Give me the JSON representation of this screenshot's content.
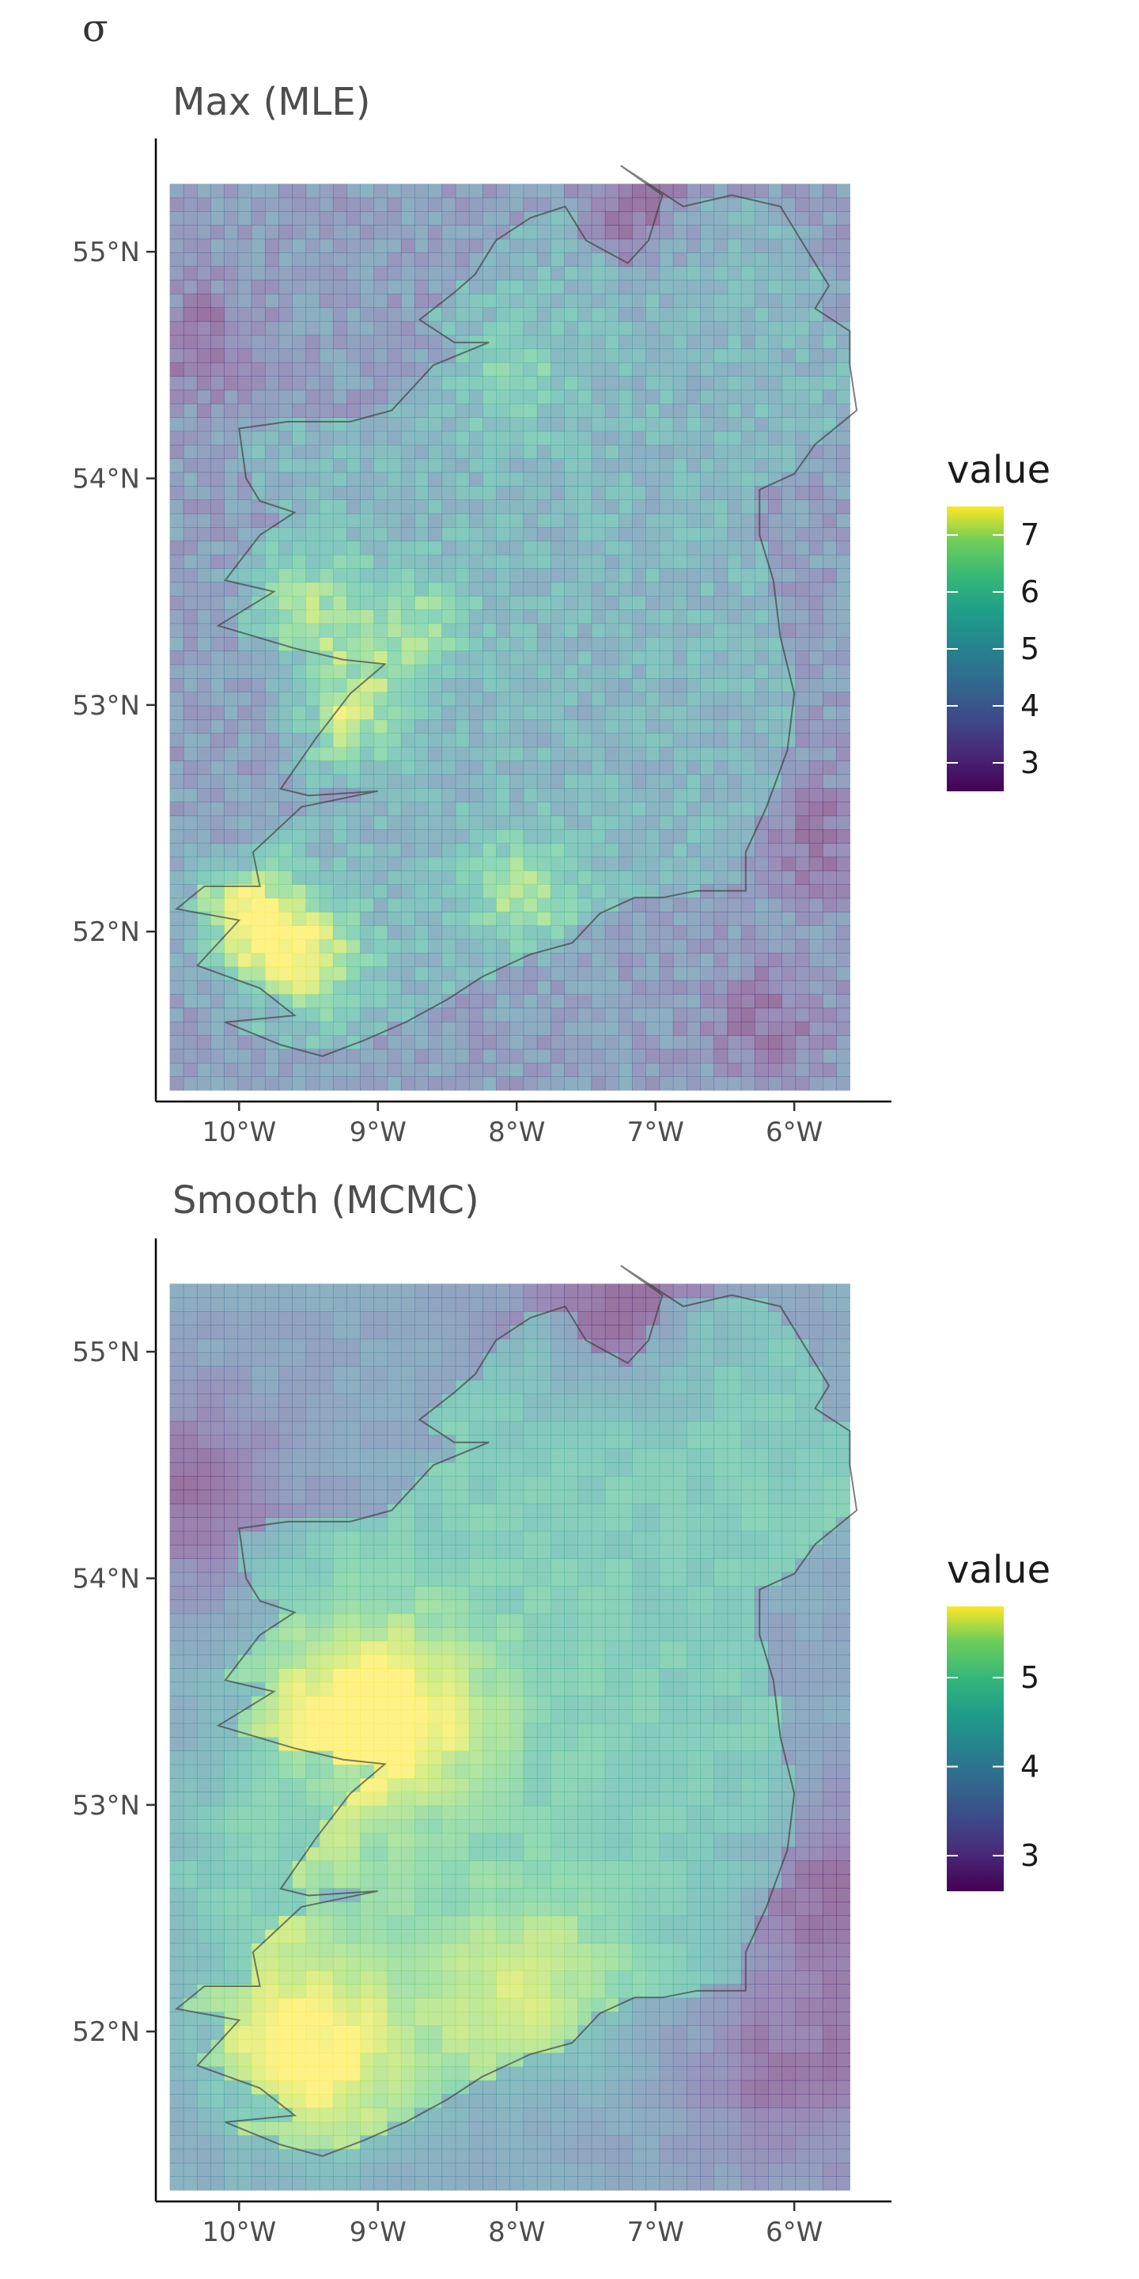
{
  "figure_label": "σ",
  "chart_data": [
    {
      "type": "heatmap",
      "title": "Max (MLE)",
      "xlabel": "",
      "ylabel": "",
      "xlim": [
        -10.6,
        -5.3
      ],
      "ylim": [
        51.25,
        55.5
      ],
      "x_ticks": [
        -10,
        -9,
        -8,
        -7,
        -6
      ],
      "x_tick_labels": [
        "10°W",
        "9°W",
        "8°W",
        "7°W",
        "6°W"
      ],
      "y_ticks": [
        52,
        53,
        54,
        55
      ],
      "y_tick_labels": [
        "52°N",
        "53°N",
        "54°N",
        "55°N"
      ],
      "grid_extent": {
        "lon": [
          -10.5,
          -5.6
        ],
        "lat": [
          51.3,
          55.3
        ]
      },
      "colormap": "viridis",
      "legend": {
        "title": "value",
        "min": 2.5,
        "max": 7.5,
        "ticks": [
          3,
          4,
          5,
          6,
          7
        ],
        "tick_labels": [
          "3",
          "4",
          "5",
          "6",
          "7"
        ],
        "position": "right"
      },
      "value_range": [
        2.5,
        7.5
      ],
      "hotspots": [
        {
          "lon": -9.95,
          "lat": 52.07,
          "value": 7.3
        },
        {
          "lon": -9.5,
          "lat": 51.88,
          "value": 6.8
        },
        {
          "lon": -9.25,
          "lat": 53.0,
          "value": 6.8
        },
        {
          "lon": -7.95,
          "lat": 52.18,
          "value": 6.3
        },
        {
          "lon": -9.5,
          "lat": 53.45,
          "value": 6.0
        },
        {
          "lon": -8.75,
          "lat": 53.35,
          "value": 5.9
        },
        {
          "lon": -8.0,
          "lat": 54.45,
          "value": 5.4
        }
      ],
      "coldspots": [
        {
          "lon": -7.1,
          "lat": 55.2,
          "value": 2.9
        },
        {
          "lon": -10.3,
          "lat": 54.6,
          "value": 3.0
        },
        {
          "lon": -5.8,
          "lat": 52.4,
          "value": 3.0
        },
        {
          "lon": -6.2,
          "lat": 51.6,
          "value": 3.0
        }
      ]
    },
    {
      "type": "heatmap",
      "title": "Smooth (MCMC)",
      "xlabel": "",
      "ylabel": "",
      "xlim": [
        -10.6,
        -5.3
      ],
      "ylim": [
        51.25,
        55.5
      ],
      "x_ticks": [
        -10,
        -9,
        -8,
        -7,
        -6
      ],
      "x_tick_labels": [
        "10°W",
        "9°W",
        "8°W",
        "7°W",
        "6°W"
      ],
      "y_ticks": [
        52,
        53,
        54,
        55
      ],
      "y_tick_labels": [
        "52°N",
        "53°N",
        "54°N",
        "55°N"
      ],
      "grid_extent": {
        "lon": [
          -10.5,
          -5.6
        ],
        "lat": [
          51.3,
          55.3
        ]
      },
      "colormap": "viridis",
      "legend": {
        "title": "value",
        "min": 2.6,
        "max": 5.8,
        "ticks": [
          3,
          4,
          5
        ],
        "tick_labels": [
          "3",
          "4",
          "5"
        ],
        "position": "right"
      },
      "value_range": [
        2.6,
        5.8
      ],
      "hotspots": [
        {
          "lon": -9.5,
          "lat": 51.9,
          "value": 5.7
        },
        {
          "lon": -9.3,
          "lat": 53.35,
          "value": 5.3
        },
        {
          "lon": -8.7,
          "lat": 53.4,
          "value": 5.1
        },
        {
          "lon": -7.95,
          "lat": 52.18,
          "value": 5.2
        },
        {
          "lon": -10.0,
          "lat": 52.7,
          "value": 5.0
        }
      ],
      "coldspots": [
        {
          "lon": -7.3,
          "lat": 55.25,
          "value": 2.9
        },
        {
          "lon": -10.4,
          "lat": 54.4,
          "value": 3.0
        },
        {
          "lon": -5.7,
          "lat": 52.6,
          "value": 3.1
        },
        {
          "lon": -6.0,
          "lat": 51.8,
          "value": 3.1
        }
      ]
    }
  ]
}
